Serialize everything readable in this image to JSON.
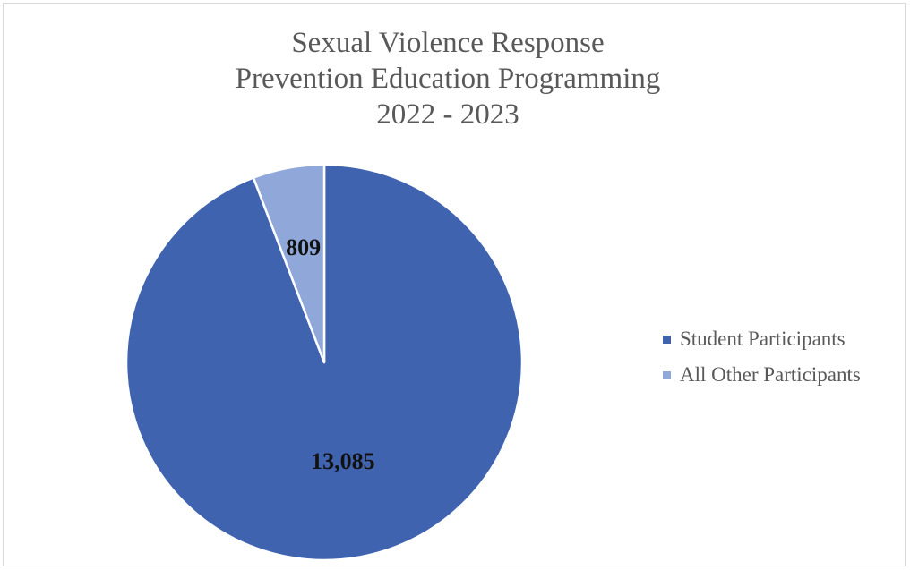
{
  "chart_data": {
    "type": "pie",
    "title_lines": [
      "Sexual Violence Response",
      "Prevention Education Programming",
      "2022 - 2023"
    ],
    "slices": [
      {
        "name": "Student Participants",
        "value": 13085,
        "label": "13,085",
        "color": "#4063b0"
      },
      {
        "name": "All Other Participants",
        "value": 809,
        "label": "809",
        "color": "#8fa7d9"
      }
    ],
    "start_angle": "top",
    "direction": "clockwise",
    "legend_position": "right"
  }
}
